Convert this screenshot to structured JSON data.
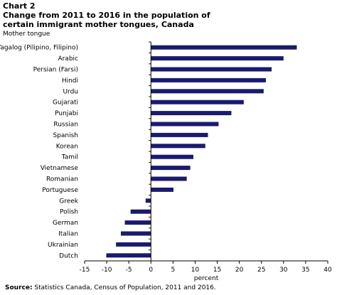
{
  "header": {
    "chart_label": "Chart 2",
    "title": "Change from 2011 to 2016 in the population of certain immigrant mother tongues, Canada",
    "subtitle": "Mother tongue"
  },
  "footer": {
    "source_label": "Source:",
    "source_text": " Statistics Canada, Census of Population, 2011 and 2016."
  },
  "colors": {
    "bar": "#1a1a6e",
    "axis": "#000000",
    "text": "#000000"
  },
  "chart_data": {
    "type": "bar",
    "orientation": "horizontal",
    "categories": [
      "Tagalog (Pilipino, Filipino)",
      "Arabic",
      "Persian (Farsi)",
      "Hindi",
      "Urdu",
      "Gujarati",
      "Punjabi",
      "Russian",
      "Spanish",
      "Korean",
      "Tamil",
      "Vietnamese",
      "Romanian",
      "Portuguese",
      "Greek",
      "Polish",
      "German",
      "Italian",
      "Ukrainian",
      "Dutch"
    ],
    "values": [
      33,
      30,
      27.3,
      26,
      25.5,
      21,
      18.2,
      15.3,
      12.9,
      12.3,
      9.6,
      8.9,
      8.1,
      5.1,
      -1.2,
      -4.6,
      -5.9,
      -6.8,
      -7.9,
      -10.1
    ],
    "xlabel": "percent",
    "ylabel": "",
    "xlim": [
      -15,
      40
    ],
    "xticks": [
      -15,
      -10,
      -5,
      0,
      5,
      10,
      15,
      20,
      25,
      30,
      35,
      40
    ],
    "grid": false,
    "legend": "none"
  }
}
